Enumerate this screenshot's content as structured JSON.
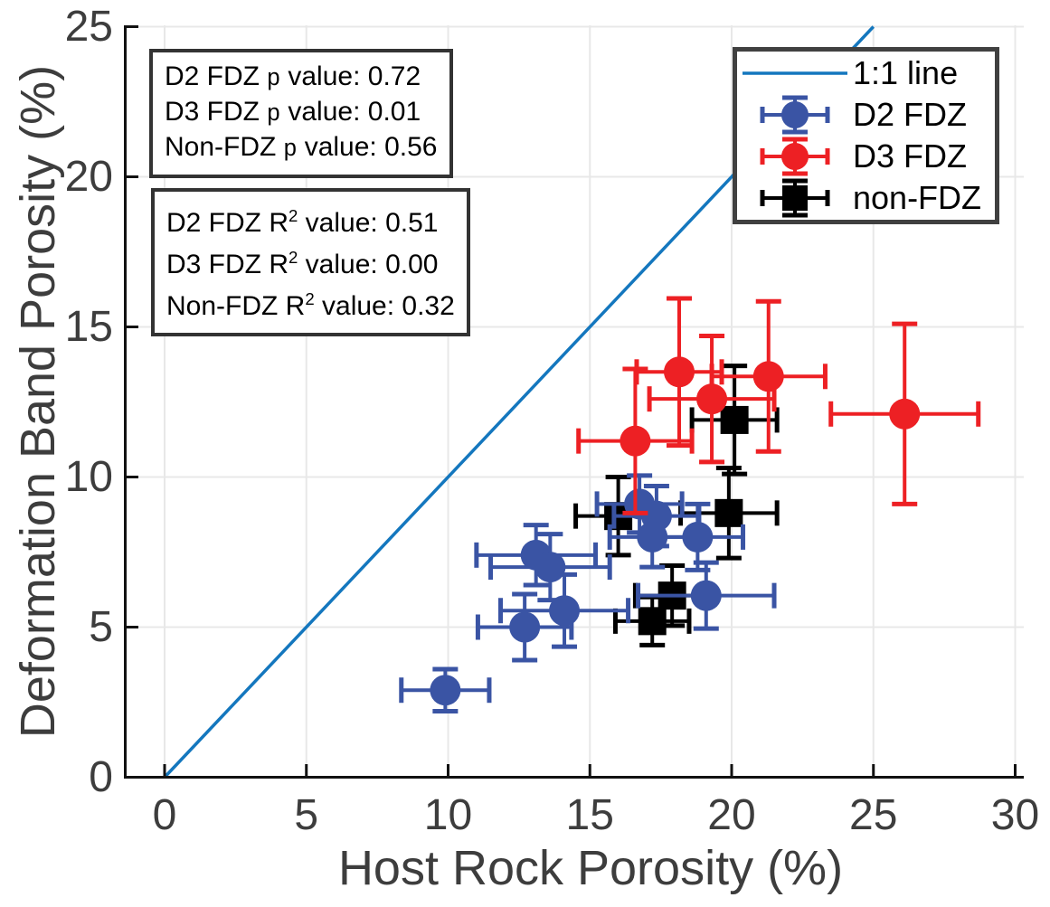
{
  "colors": {
    "d2_fdz_blue": "#3a54a4",
    "d3_fdz_red": "#ed2024",
    "non_fdz_black": "#000000",
    "one_to_one_line_blue": "#1477be",
    "grid_gray": "#e8e8e8",
    "axis_black": "#111111",
    "tick_label_gray": "#3d3d3d"
  },
  "annotation_boxes": [
    {
      "id": "anno-p",
      "name": "p-value-box",
      "lines": [
        {
          "pre": "D2 FDZ ",
          "var": "p",
          "post": " value: 0.72"
        },
        {
          "pre": "D3 FDZ ",
          "var": "p",
          "post": " value: 0.01"
        },
        {
          "pre": "Non-FDZ ",
          "var": "p",
          "post": " value: 0.56"
        }
      ]
    },
    {
      "id": "anno-r2",
      "name": "r2-value-box",
      "lines": [
        {
          "pre": "D2 FDZ R",
          "sup": "2",
          "post": " value: 0.51"
        },
        {
          "pre": "D3 FDZ R",
          "sup": "2",
          "post": " value: 0.00"
        },
        {
          "pre": "Non-FDZ R",
          "sup": "2",
          "post": " value: 0.32"
        }
      ]
    }
  ],
  "legend": {
    "items": [
      {
        "type": "line",
        "color": "#1477be",
        "label": "1:1 line"
      },
      {
        "type": "circle",
        "color": "#3a54a4",
        "label": "D2 FDZ"
      },
      {
        "type": "circle",
        "color": "#ed2024",
        "label": "D3 FDZ"
      },
      {
        "type": "square",
        "color": "#000000",
        "label": "non-FDZ"
      }
    ]
  },
  "chart_data": {
    "type": "scatter",
    "title": "",
    "xlabel": "Host Rock Porosity (%)",
    "ylabel": "Deformation Band Porosity (%)",
    "xlim": [
      0,
      30
    ],
    "ylim": [
      0,
      25
    ],
    "xticks": [
      0,
      5,
      10,
      15,
      20,
      25,
      30
    ],
    "yticks": [
      0,
      5,
      10,
      15,
      20,
      25
    ],
    "grid": true,
    "legend_position": "top-right",
    "reference_line": {
      "label": "1:1 line",
      "from": [
        0,
        0
      ],
      "to": [
        25,
        25
      ],
      "color": "#1477be"
    },
    "series": [
      {
        "name": "D2 FDZ",
        "marker": "circle",
        "color": "#3a54a4",
        "points": [
          {
            "x": 9.9,
            "y": 2.9,
            "xerr": 1.55,
            "yerr": 0.7
          },
          {
            "x": 12.7,
            "y": 5.0,
            "xerr": 1.65,
            "yerr": 1.1
          },
          {
            "x": 14.1,
            "y": 5.55,
            "xerr": 2.25,
            "yerr": 1.2
          },
          {
            "x": 13.1,
            "y": 7.4,
            "xerr": 2.1,
            "yerr": 1.0
          },
          {
            "x": 13.6,
            "y": 7.0,
            "xerr": 2.1,
            "yerr": 1.1
          },
          {
            "x": 16.75,
            "y": 9.1,
            "xerr": 1.5,
            "yerr": 0.95
          },
          {
            "x": 17.35,
            "y": 8.7,
            "xerr": 1.5,
            "yerr": 1.0
          },
          {
            "x": 17.2,
            "y": 8.0,
            "xerr": 1.5,
            "yerr": 1.0
          },
          {
            "x": 18.8,
            "y": 8.0,
            "xerr": 1.6,
            "yerr": 1.1
          },
          {
            "x": 19.1,
            "y": 6.05,
            "xerr": 2.4,
            "yerr": 1.1
          }
        ]
      },
      {
        "name": "D3 FDZ",
        "marker": "circle",
        "color": "#ed2024",
        "points": [
          {
            "x": 16.6,
            "y": 11.2,
            "xerr": 2.0,
            "yerr": 2.4
          },
          {
            "x": 18.15,
            "y": 13.5,
            "xerr": 1.5,
            "yerr": 2.45
          },
          {
            "x": 19.3,
            "y": 12.6,
            "xerr": 2.2,
            "yerr": 2.1
          },
          {
            "x": 21.3,
            "y": 13.35,
            "xerr": 2.0,
            "yerr": 2.5
          },
          {
            "x": 26.1,
            "y": 12.1,
            "xerr": 2.6,
            "yerr": 3.0
          }
        ]
      },
      {
        "name": "non-FDZ",
        "marker": "square",
        "color": "#000000",
        "points": [
          {
            "x": 16.0,
            "y": 8.7,
            "xerr": 1.5,
            "yerr": 1.3
          },
          {
            "x": 19.9,
            "y": 8.8,
            "xerr": 1.7,
            "yerr": 1.5
          },
          {
            "x": 20.1,
            "y": 11.9,
            "xerr": 1.5,
            "yerr": 1.8
          },
          {
            "x": 17.9,
            "y": 6.05,
            "xerr": 1.3,
            "yerr": 1.0
          },
          {
            "x": 17.2,
            "y": 5.2,
            "xerr": 1.3,
            "yerr": 0.8
          }
        ]
      }
    ],
    "stats": {
      "p_values": {
        "D2 FDZ": "0.72",
        "D3 FDZ": "0.01",
        "Non-FDZ": "0.56"
      },
      "r2_values": {
        "D2 FDZ": "0.51",
        "D3 FDZ": "0.00",
        "Non-FDZ": "0.32"
      }
    }
  }
}
